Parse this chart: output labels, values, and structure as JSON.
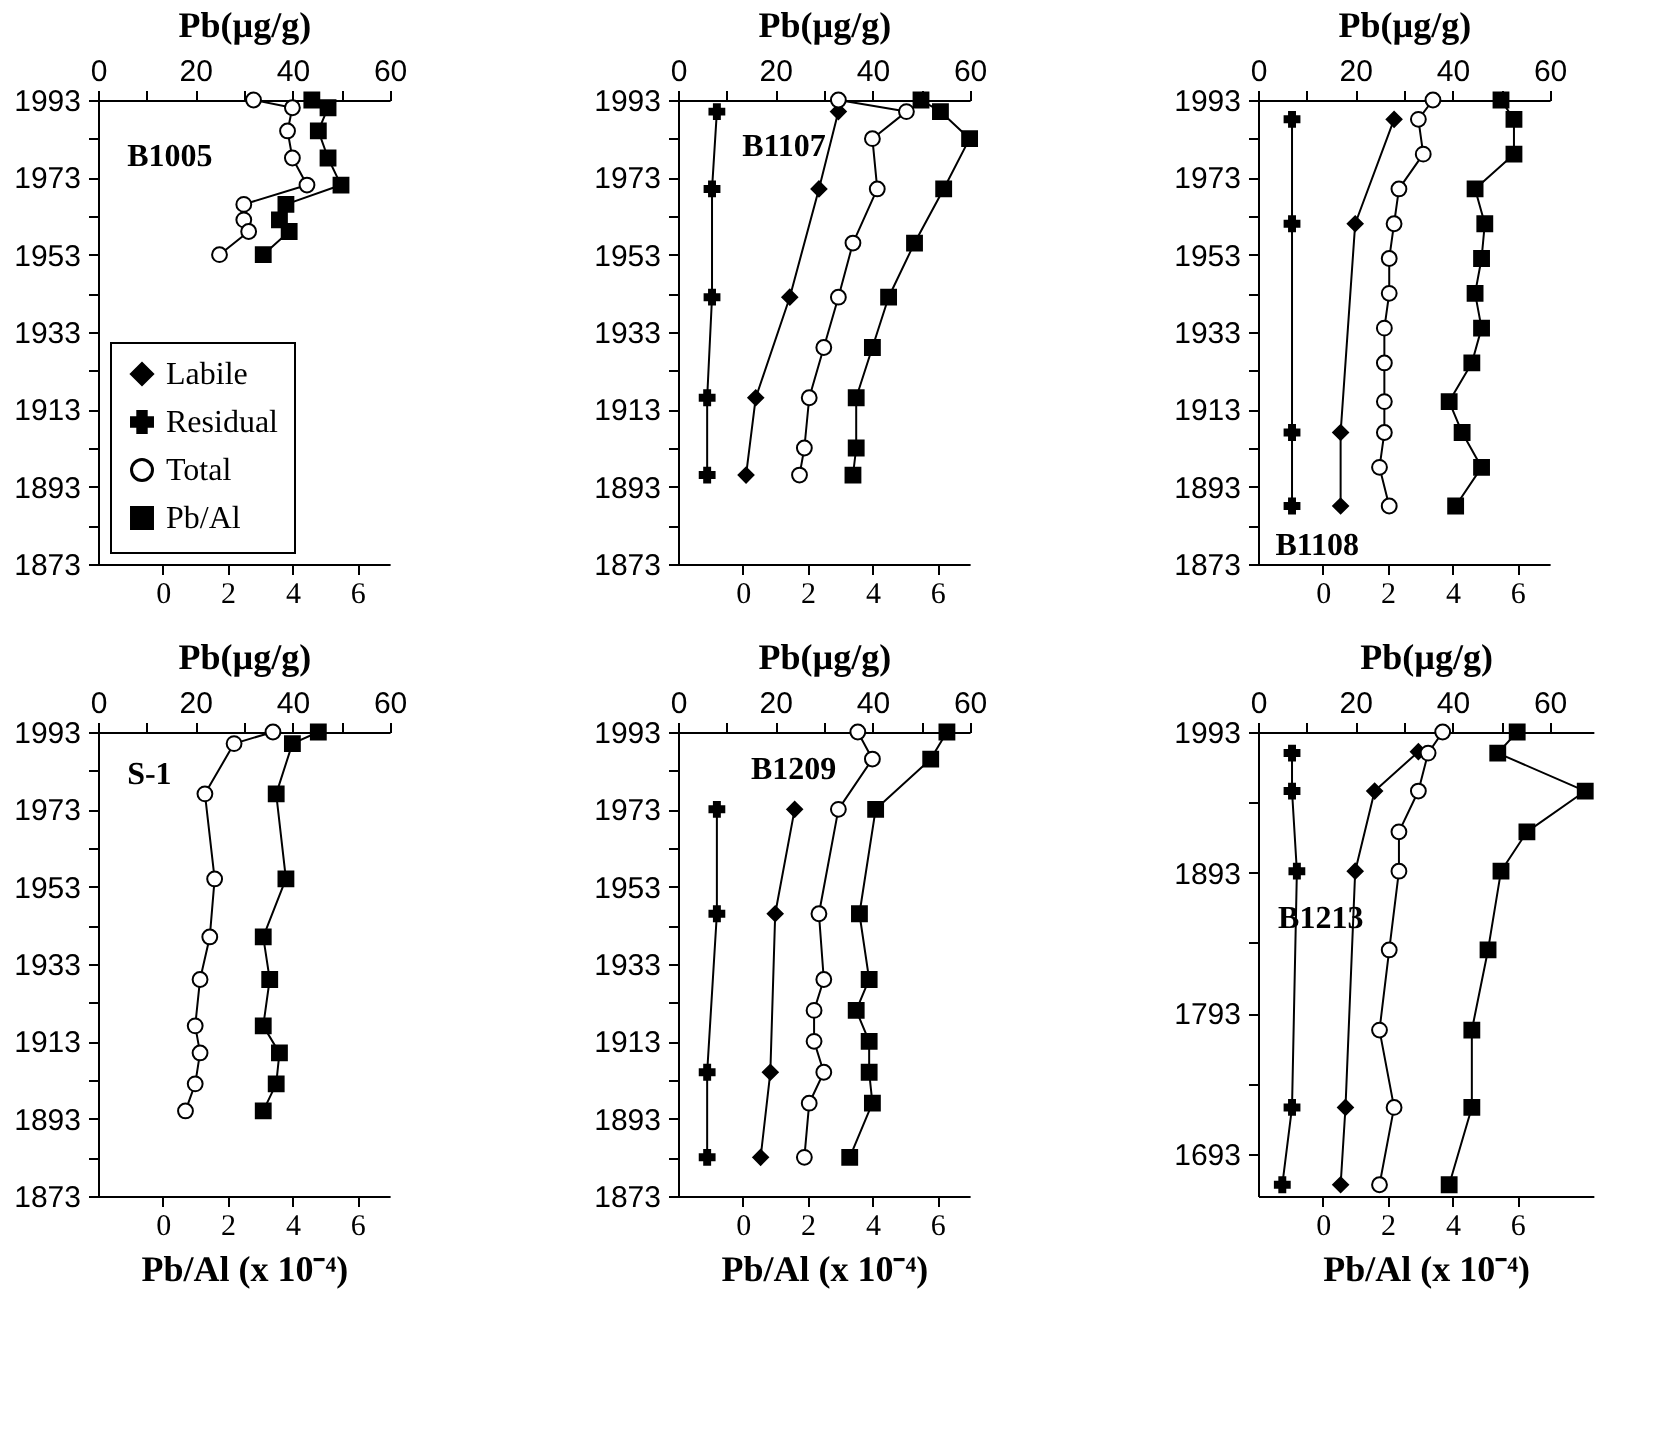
{
  "chart_data": [
    {
      "type": "line",
      "xlabel": "Pb(µg/g)",
      "annotations": [
        "B1005"
      ],
      "legend": "bottom left",
      "xlim": [
        0,
        60
      ],
      "xticks": [
        0,
        {
          "value": 10,
          "label": null
        },
        20,
        {
          "value": 30,
          "label": null
        },
        40,
        {
          "value": 50,
          "label": null
        },
        60
      ],
      "x2lim": [
        -2,
        7
      ],
      "x2ticks": [
        0,
        2,
        4,
        6
      ],
      "ylim": [
        1873,
        1993
      ],
      "yticks": [
        1993,
        {
          "value": 1983,
          "label": null
        },
        1973,
        {
          "value": 1963,
          "label": null
        },
        1953,
        {
          "value": 1943,
          "label": null
        },
        1933,
        {
          "value": 1923,
          "label": null
        },
        1913,
        {
          "value": 1903,
          "label": null
        },
        1893,
        {
          "value": 1883,
          "label": null
        },
        1873
      ],
      "series": [
        {
          "name": "Labile",
          "color": "#000000",
          "marker": "diamond"
        },
        {
          "name": "Residual",
          "color": "#000000",
          "marker": "cross"
        },
        {
          "name": "Total",
          "color": "#000000",
          "marker": "circle",
          "values": [
            1993,
            1991,
            1985,
            1978,
            1971,
            1966,
            1962,
            1959,
            1953
          ],
          "x": [
            32,
            40,
            39,
            40,
            43,
            30,
            30,
            31,
            25
          ]
        },
        {
          "name": "Pb/Al",
          "color": "#000000",
          "marker": "square",
          "axis": "x2",
          "values": [
            1993,
            1991,
            1985,
            1978,
            1971,
            1966,
            1962,
            1959,
            1953
          ],
          "x": [
            4.6,
            5.1,
            4.8,
            5.1,
            5.5,
            3.8,
            3.6,
            3.9,
            3.1
          ]
        }
      ]
    },
    {
      "type": "line",
      "xlabel": "Pb(µg/g)",
      "annotations": [
        "B1107"
      ],
      "xlim": [
        0,
        60
      ],
      "xticks": [
        0,
        {
          "value": 10,
          "label": null
        },
        20,
        {
          "value": 30,
          "label": null
        },
        40,
        {
          "value": 50,
          "label": null
        },
        60
      ],
      "x2lim": [
        -2,
        7
      ],
      "x2ticks": [
        0,
        2,
        4,
        6
      ],
      "ylim": [
        1873,
        1993
      ],
      "yticks": [
        1993,
        {
          "value": 1983,
          "label": null
        },
        1973,
        {
          "value": 1963,
          "label": null
        },
        1953,
        {
          "value": 1943,
          "label": null
        },
        1933,
        {
          "value": 1923,
          "label": null
        },
        1913,
        {
          "value": 1903,
          "label": null
        },
        1893,
        {
          "value": 1883,
          "label": null
        },
        1873
      ],
      "series": [
        {
          "color": "#000000",
          "marker": "cross",
          "values": [
            1990,
            1970,
            1942,
            1916,
            1896
          ],
          "x": [
            8,
            7,
            7,
            6,
            6
          ]
        },
        {
          "color": "#000000",
          "marker": "diamond",
          "values": [
            1990,
            1970,
            1942,
            1916,
            1896
          ],
          "x": [
            33,
            29,
            23,
            16,
            14
          ]
        },
        {
          "color": "#000000",
          "marker": "circle",
          "values": [
            1993,
            1990,
            1983,
            1970,
            1956,
            1942,
            1929,
            1916,
            1903,
            1896
          ],
          "x": [
            33,
            47,
            40,
            41,
            36,
            33,
            30,
            27,
            26,
            25
          ]
        },
        {
          "color": "#000000",
          "marker": "square",
          "axis": "x2",
          "values": [
            1993,
            1990,
            1983,
            1970,
            1956,
            1942,
            1929,
            1916,
            1903,
            1896
          ],
          "x": [
            5.5,
            6.1,
            7.0,
            6.2,
            5.3,
            4.5,
            4.0,
            3.5,
            3.5,
            3.4
          ]
        }
      ]
    },
    {
      "type": "line",
      "xlabel": "Pb(µg/g)",
      "annotations": [
        "B1108"
      ],
      "xlim": [
        0,
        60
      ],
      "xticks": [
        0,
        {
          "value": 10,
          "label": null
        },
        20,
        {
          "value": 30,
          "label": null
        },
        40,
        {
          "value": 50,
          "label": null
        },
        60
      ],
      "x2lim": [
        -2,
        7
      ],
      "x2ticks": [
        0,
        2,
        4,
        6
      ],
      "ylim": [
        1873,
        1993
      ],
      "yticks": [
        1993,
        {
          "value": 1983,
          "label": null
        },
        1973,
        {
          "value": 1963,
          "label": null
        },
        1953,
        {
          "value": 1943,
          "label": null
        },
        1933,
        {
          "value": 1923,
          "label": null
        },
        1913,
        {
          "value": 1903,
          "label": null
        },
        1893,
        {
          "value": 1883,
          "label": null
        },
        1873
      ],
      "series": [
        {
          "color": "#000000",
          "marker": "cross",
          "values": [
            1988,
            1961,
            1907,
            1888
          ],
          "x": [
            7,
            7,
            7,
            7
          ]
        },
        {
          "color": "#000000",
          "marker": "diamond",
          "values": [
            1988,
            1961,
            1907,
            1888
          ],
          "x": [
            28,
            20,
            17,
            17
          ]
        },
        {
          "color": "#000000",
          "marker": "circle",
          "values": [
            1993,
            1988,
            1979,
            1970,
            1961,
            1952,
            1943,
            1934,
            1925,
            1915,
            1907,
            1898,
            1888
          ],
          "x": [
            36,
            33,
            34,
            29,
            28,
            27,
            27,
            26,
            26,
            26,
            26,
            25,
            27
          ]
        },
        {
          "color": "#000000",
          "marker": "square",
          "axis": "x2",
          "values": [
            1993,
            1988,
            1979,
            1970,
            1961,
            1952,
            1943,
            1934,
            1925,
            1915,
            1907,
            1898,
            1888
          ],
          "x": [
            5.5,
            5.9,
            5.9,
            4.7,
            5.0,
            4.9,
            4.7,
            4.9,
            4.6,
            3.9,
            4.3,
            4.9,
            4.1
          ]
        }
      ]
    },
    {
      "type": "line",
      "xlabel": "Pb(µg/g)",
      "x2label": "Pb/Al (x 10⁻⁴)",
      "annotations": [
        "S-1"
      ],
      "xlim": [
        0,
        60
      ],
      "xticks": [
        0,
        {
          "value": 10,
          "label": null
        },
        20,
        {
          "value": 30,
          "label": null
        },
        40,
        {
          "value": 50,
          "label": null
        },
        60
      ],
      "x2lim": [
        -2,
        7
      ],
      "x2ticks": [
        0,
        2,
        4,
        6
      ],
      "ylim": [
        1873,
        1993
      ],
      "yticks": [
        1993,
        {
          "value": 1983,
          "label": null
        },
        1973,
        {
          "value": 1963,
          "label": null
        },
        1953,
        {
          "value": 1943,
          "label": null
        },
        1933,
        {
          "value": 1923,
          "label": null
        },
        1913,
        {
          "value": 1903,
          "label": null
        },
        1893,
        {
          "value": 1883,
          "label": null
        },
        1873
      ],
      "series": [
        {
          "color": "#000000",
          "marker": "circle",
          "values": [
            1993,
            1990,
            1977,
            1955,
            1940,
            1929,
            1917,
            1910,
            1902,
            1895
          ],
          "x": [
            36,
            28,
            22,
            24,
            23,
            21,
            20,
            21,
            20,
            18
          ]
        },
        {
          "color": "#000000",
          "marker": "square",
          "axis": "x2",
          "values": [
            1993,
            1990,
            1977,
            1955,
            1940,
            1929,
            1917,
            1910,
            1902,
            1895
          ],
          "x": [
            4.8,
            4.0,
            3.5,
            3.8,
            3.1,
            3.3,
            3.1,
            3.6,
            3.5,
            3.1
          ]
        }
      ]
    },
    {
      "type": "line",
      "xlabel": "Pb(µg/g)",
      "x2label": "Pb/Al (x 10⁻⁴)",
      "annotations": [
        "B1209"
      ],
      "xlim": [
        0,
        60
      ],
      "xticks": [
        0,
        {
          "value": 10,
          "label": null
        },
        20,
        {
          "value": 30,
          "label": null
        },
        40,
        {
          "value": 50,
          "label": null
        },
        60
      ],
      "x2lim": [
        -2,
        7
      ],
      "x2ticks": [
        0,
        2,
        4,
        6
      ],
      "ylim": [
        1873,
        1993
      ],
      "yticks": [
        1993,
        {
          "value": 1983,
          "label": null
        },
        1973,
        {
          "value": 1963,
          "label": null
        },
        1953,
        {
          "value": 1943,
          "label": null
        },
        1933,
        {
          "value": 1923,
          "label": null
        },
        1913,
        {
          "value": 1903,
          "label": null
        },
        1893,
        {
          "value": 1883,
          "label": null
        },
        1873
      ],
      "series": [
        {
          "color": "#000000",
          "marker": "cross",
          "values": [
            1973,
            1946,
            1905,
            1883
          ],
          "x": [
            8,
            8,
            6,
            6
          ]
        },
        {
          "color": "#000000",
          "marker": "diamond",
          "values": [
            1973,
            1946,
            1905,
            1883
          ],
          "x": [
            24,
            20,
            19,
            17
          ]
        },
        {
          "color": "#000000",
          "marker": "circle",
          "values": [
            1993,
            1986,
            1973,
            1946,
            1929,
            1921,
            1913,
            1905,
            1897,
            1883
          ],
          "x": [
            37,
            40,
            33,
            29,
            30,
            28,
            28,
            30,
            27,
            26
          ]
        },
        {
          "color": "#000000",
          "marker": "square",
          "axis": "x2",
          "values": [
            1993,
            1986,
            1973,
            1946,
            1929,
            1921,
            1913,
            1905,
            1897,
            1883
          ],
          "x": [
            6.3,
            5.8,
            4.1,
            3.6,
            3.9,
            3.5,
            3.9,
            3.9,
            4.0,
            3.3
          ]
        }
      ]
    },
    {
      "type": "line",
      "xlabel": "Pb(µg/g)",
      "x2label": "Pb/Al (x 10⁻⁴)",
      "annotations": [
        "B1213"
      ],
      "xlim": [
        0,
        69
      ],
      "xticks": [
        0,
        {
          "value": 10,
          "label": null
        },
        20,
        {
          "value": 30,
          "label": null
        },
        40,
        {
          "value": 50,
          "label": null
        },
        60
      ],
      "x2lim": [
        -2,
        8.35
      ],
      "x2ticks": [
        0,
        2,
        4,
        6
      ],
      "ylim": [
        1663,
        1993
      ],
      "yticks": [
        1993,
        {
          "value": 1943,
          "label": null
        },
        1893,
        {
          "value": 1843,
          "label": null
        },
        1793,
        {
          "value": 1743,
          "label": null
        },
        1693
      ],
      "series": [
        {
          "color": "#000000",
          "marker": "cross",
          "values": [
            1978,
            1951,
            1894,
            1726,
            1671
          ],
          "x": [
            7,
            7,
            8,
            7,
            5
          ]
        },
        {
          "color": "#000000",
          "marker": "diamond",
          "values": [
            1979,
            1951,
            1894,
            1726,
            1671
          ],
          "x": [
            33,
            24,
            20,
            18,
            17
          ]
        },
        {
          "color": "#000000",
          "marker": "circle",
          "values": [
            1993,
            1978,
            1951,
            1922,
            1894,
            1838,
            1781,
            1726,
            1671
          ],
          "x": [
            38,
            35,
            33,
            29,
            29,
            27,
            25,
            28,
            25
          ]
        },
        {
          "color": "#000000",
          "marker": "square",
          "axis": "x2",
          "values": [
            1993,
            1978,
            1951,
            1922,
            1894,
            1838,
            1781,
            1726,
            1671
          ],
          "x": [
            6.0,
            5.4,
            8.1,
            6.3,
            5.5,
            5.1,
            4.6,
            4.6,
            3.9
          ]
        }
      ]
    }
  ]
}
